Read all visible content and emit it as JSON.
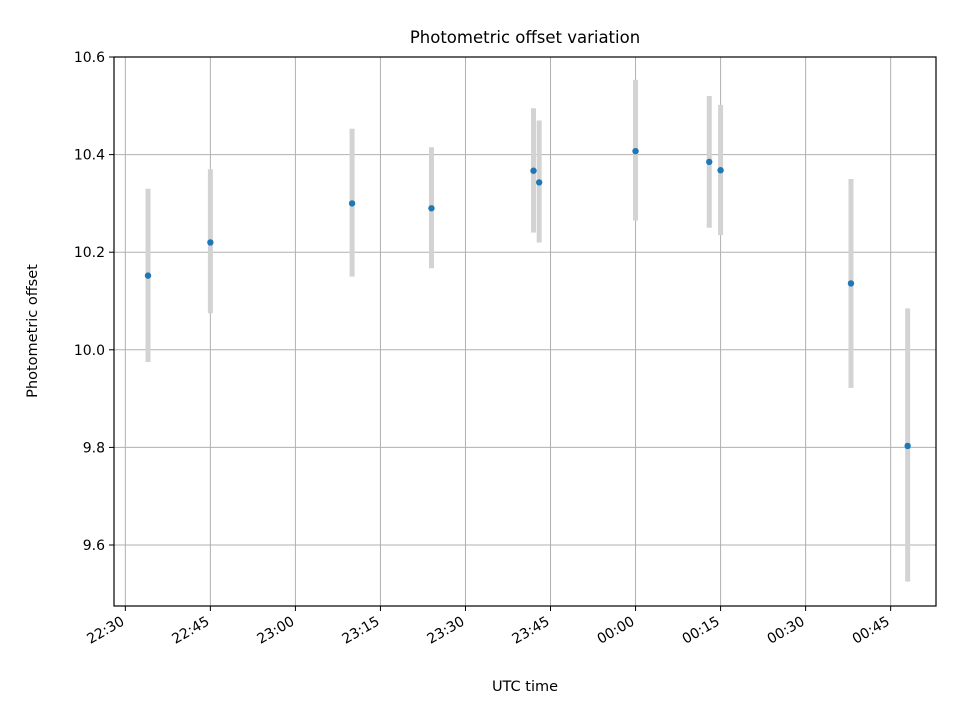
{
  "chart_data": {
    "type": "scatter",
    "title": "Photometric offset variation",
    "xlabel": "UTC time",
    "ylabel": "Photometric offset",
    "x_tick_labels": [
      "22:30",
      "22:45",
      "23:00",
      "23:15",
      "23:30",
      "23:45",
      "00:00",
      "00:15",
      "00:30",
      "00:45"
    ],
    "y_tick_labels": [
      "9.6",
      "9.8",
      "10.0",
      "10.2",
      "10.4",
      "10.6"
    ],
    "y_ticks": [
      9.6,
      9.8,
      10.0,
      10.2,
      10.4,
      10.6
    ],
    "xlim": [
      "22:28",
      "00:53"
    ],
    "ylim": [
      9.475,
      10.6
    ],
    "grid": true,
    "colors": {
      "point": "#1f77b4",
      "errorbar": "#d3d3d3",
      "grid": "#b0b0b0"
    },
    "points": [
      {
        "time": "22:34",
        "y": 10.152,
        "low": 9.975,
        "high": 10.33
      },
      {
        "time": "22:45",
        "y": 10.22,
        "low": 10.075,
        "high": 10.37
      },
      {
        "time": "23:10",
        "y": 10.3,
        "low": 10.15,
        "high": 10.453
      },
      {
        "time": "23:24",
        "y": 10.29,
        "low": 10.167,
        "high": 10.415
      },
      {
        "time": "23:42",
        "y": 10.367,
        "low": 10.24,
        "high": 10.495
      },
      {
        "time": "23:43",
        "y": 10.343,
        "low": 10.22,
        "high": 10.47
      },
      {
        "time": "00:00",
        "y": 10.407,
        "low": 10.265,
        "high": 10.553
      },
      {
        "time": "00:13",
        "y": 10.385,
        "low": 10.25,
        "high": 10.52
      },
      {
        "time": "00:15",
        "y": 10.368,
        "low": 10.235,
        "high": 10.502
      },
      {
        "time": "00:38",
        "y": 10.136,
        "low": 9.922,
        "high": 10.35
      },
      {
        "time": "00:48",
        "y": 9.803,
        "low": 9.525,
        "high": 10.085
      }
    ]
  }
}
